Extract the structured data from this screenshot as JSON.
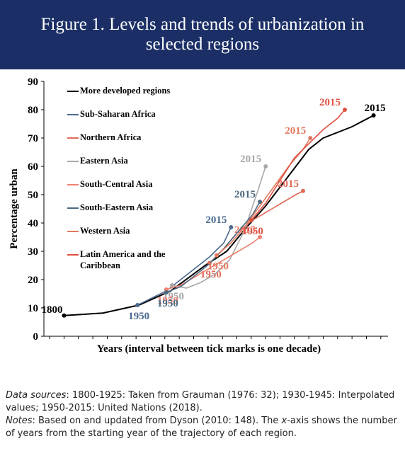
{
  "chart_data": {
    "type": "line",
    "title": "Figure 1. Levels and trends of urbanization in selected regions",
    "ylabel": "Percentage  urban",
    "xlabel": "Years (interval between tick marks is one decade)",
    "xlim": [
      -14,
      225
    ],
    "xticks": [
      -10,
      0,
      10,
      20,
      30,
      40,
      50,
      60,
      70,
      80,
      90,
      100,
      110,
      120,
      130,
      140,
      150,
      160,
      170,
      180,
      190,
      200,
      210,
      220
    ],
    "ylim": [
      0,
      90
    ],
    "yticks": [
      0,
      10,
      20,
      30,
      40,
      50,
      60,
      70,
      80,
      90
    ],
    "series": [
      {
        "name": "More developed regions",
        "color": "#000000",
        "start_label": "1800",
        "end_label": "2015",
        "x": [
          0,
          27,
          52,
          74,
          98,
          113,
          126,
          140,
          155,
          170,
          180,
          200,
          215
        ],
        "values": [
          7.3,
          8.2,
          11,
          16,
          25,
          30,
          38,
          46,
          56,
          66,
          70,
          74,
          78
        ]
      },
      {
        "name": "Sub-Saharan Africa",
        "color": "#4a6a90",
        "start_label": "1950",
        "end_label": "2015",
        "x": [
          51,
          61,
          71,
          81,
          91,
          101,
          111,
          116
        ],
        "values": [
          11,
          13.5,
          16,
          20,
          24,
          28,
          33,
          38.5
        ]
      },
      {
        "name": "Northern Africa",
        "color": "#e06a5a",
        "start_label": "1950",
        "end_label": "2015",
        "x": [
          101,
          111,
          121,
          131,
          141,
          151,
          161,
          166
        ],
        "values": [
          25.8,
          31,
          37,
          41,
          44,
          47,
          50,
          51.3
        ]
      },
      {
        "name": "Eastern Asia",
        "color": "#a8a8a8",
        "start_label": "1950",
        "end_label": "2015",
        "x": [
          75,
          85,
          95,
          105,
          115,
          125,
          135,
          140
        ],
        "values": [
          18,
          17,
          19,
          22,
          27,
          37,
          52,
          60
        ]
      },
      {
        "name": "South-Central Asia",
        "color": "#f08070",
        "start_label": "1950",
        "end_label": "2015",
        "x": [
          71,
          81,
          91,
          101,
          111,
          121,
          131,
          136
        ],
        "values": [
          16.5,
          18,
          21,
          24,
          27,
          30,
          33,
          35
        ]
      },
      {
        "name": "South-Eastern Asia",
        "color": "#4a6a80",
        "start_label": "1950",
        "end_label": "2015",
        "x": [
          71,
          81,
          91,
          101,
          111,
          121,
          131,
          136
        ],
        "values": [
          15.5,
          17.5,
          21.5,
          25.6,
          31,
          37,
          43,
          47.5
        ]
      },
      {
        "name": "Western Asia",
        "color": "#e07a60",
        "start_label": "1950",
        "end_label": "2015",
        "x": [
          106,
          116,
          126,
          136,
          146,
          156,
          166,
          171
        ],
        "values": [
          28.6,
          33,
          39,
          46,
          53,
          60,
          66,
          70
        ]
      },
      {
        "name": "Latin America and the Caribbean",
        "color": "#e05040",
        "start_label": "1950",
        "end_label": "2015",
        "x": [
          130,
          140,
          150,
          160,
          170,
          180,
          190,
          195
        ],
        "values": [
          41,
          47,
          55,
          63,
          68,
          73,
          77,
          80
        ]
      }
    ]
  },
  "footer": {
    "sources_label": "Data sources",
    "sources_text": ": 1800-1925: Taken from Grauman (1976: 32); 1930-1945: Interpolated values; 1950-2015: United Nations (2018).",
    "notes_label": "Notes",
    "notes_text_1": ": Based on and updated from Dyson (2010: 148). The ",
    "notes_italic": "x",
    "notes_text_2": "-axis shows the number of years from the starting year of the trajectory of each region."
  }
}
